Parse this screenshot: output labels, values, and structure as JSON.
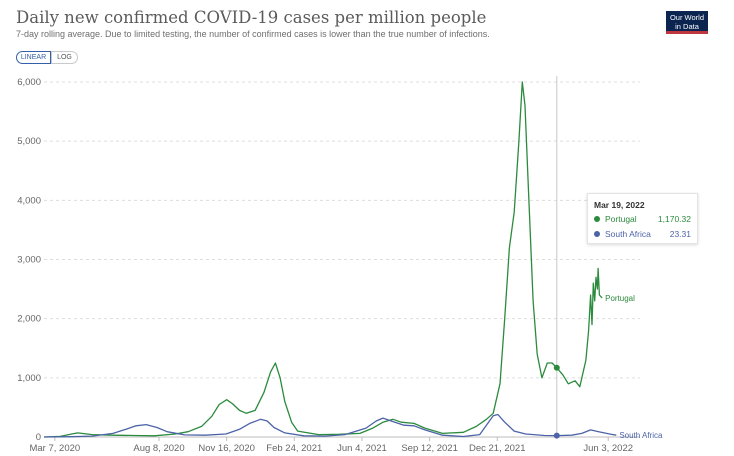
{
  "header": {
    "title": "Daily new confirmed COVID-19 cases per million people",
    "subtitle": "7-day rolling average. Due to limited testing, the number of confirmed cases is lower than the true number of infections.",
    "logo_line1": "Our World",
    "logo_line2": "in Data"
  },
  "controls": {
    "linear_label": "LINEAR",
    "log_label": "LOG",
    "selected": "LINEAR"
  },
  "tooltip": {
    "date": "Mar 19, 2022",
    "rows": [
      {
        "name": "Portugal",
        "value": "1,170.32",
        "color": "#2b8b3d"
      },
      {
        "name": "South Africa",
        "value": "23.31",
        "color": "#4c63a8"
      }
    ]
  },
  "chart_data": {
    "type": "line",
    "title": "Daily new confirmed COVID-19 cases per million people",
    "xlabel": "",
    "ylabel": "",
    "y_ticks": [
      "0",
      "1,000",
      "2,000",
      "3,000",
      "4,000",
      "5,000",
      "6,000"
    ],
    "ylim": [
      0,
      6000
    ],
    "x_ticks": [
      "Mar 7, 2020",
      "Aug 8, 2020",
      "Nov 16, 2020",
      "Feb 24, 2021",
      "Jun 4, 2021",
      "Sep 12, 2021",
      "Dec 21, 2021",
      "Jun 3, 2022"
    ],
    "x_tick_dates": [
      "2020-03-07",
      "2020-08-08",
      "2020-11-16",
      "2021-02-24",
      "2021-06-04",
      "2021-09-12",
      "2021-12-21",
      "2022-06-03"
    ],
    "xlim": [
      "2020-02-20",
      "2022-07-20"
    ],
    "grid": true,
    "highlight_date": "2022-03-19",
    "series": [
      {
        "name": "Portugal",
        "color": "#2b8b3d",
        "points": [
          [
            "2020-02-20",
            0
          ],
          [
            "2020-03-15",
            10
          ],
          [
            "2020-04-01",
            50
          ],
          [
            "2020-04-10",
            70
          ],
          [
            "2020-05-01",
            40
          ],
          [
            "2020-06-01",
            30
          ],
          [
            "2020-07-01",
            25
          ],
          [
            "2020-08-01",
            20
          ],
          [
            "2020-09-01",
            50
          ],
          [
            "2020-09-20",
            90
          ],
          [
            "2020-10-10",
            180
          ],
          [
            "2020-10-25",
            350
          ],
          [
            "2020-11-05",
            550
          ],
          [
            "2020-11-16",
            630
          ],
          [
            "2020-11-25",
            560
          ],
          [
            "2020-12-05",
            450
          ],
          [
            "2020-12-15",
            400
          ],
          [
            "2020-12-28",
            450
          ],
          [
            "2021-01-10",
            750
          ],
          [
            "2021-01-20",
            1100
          ],
          [
            "2021-01-27",
            1250
          ],
          [
            "2021-02-03",
            1000
          ],
          [
            "2021-02-10",
            600
          ],
          [
            "2021-02-20",
            250
          ],
          [
            "2021-03-01",
            100
          ],
          [
            "2021-04-01",
            40
          ],
          [
            "2021-05-01",
            45
          ],
          [
            "2021-06-01",
            60
          ],
          [
            "2021-06-20",
            150
          ],
          [
            "2021-07-05",
            250
          ],
          [
            "2021-07-20",
            300
          ],
          [
            "2021-08-01",
            250
          ],
          [
            "2021-08-20",
            230
          ],
          [
            "2021-09-05",
            150
          ],
          [
            "2021-10-01",
            60
          ],
          [
            "2021-11-01",
            80
          ],
          [
            "2021-11-20",
            180
          ],
          [
            "2021-12-05",
            300
          ],
          [
            "2021-12-15",
            400
          ],
          [
            "2021-12-25",
            900
          ],
          [
            "2022-01-01",
            2000
          ],
          [
            "2022-01-08",
            3200
          ],
          [
            "2022-01-15",
            3800
          ],
          [
            "2022-01-22",
            5000
          ],
          [
            "2022-01-27",
            6000
          ],
          [
            "2022-01-31",
            5600
          ],
          [
            "2022-02-05",
            4200
          ],
          [
            "2022-02-12",
            2300
          ],
          [
            "2022-02-18",
            1400
          ],
          [
            "2022-02-25",
            1000
          ],
          [
            "2022-03-05",
            1250
          ],
          [
            "2022-03-12",
            1250
          ],
          [
            "2022-03-19",
            1170
          ],
          [
            "2022-03-28",
            1050
          ],
          [
            "2022-04-05",
            900
          ],
          [
            "2022-04-15",
            950
          ],
          [
            "2022-04-22",
            850
          ],
          [
            "2022-05-01",
            1300
          ],
          [
            "2022-05-05",
            1800
          ],
          [
            "2022-05-08",
            2400
          ],
          [
            "2022-05-10",
            1900
          ],
          [
            "2022-05-12",
            2600
          ],
          [
            "2022-05-14",
            2300
          ],
          [
            "2022-05-16",
            2700
          ],
          [
            "2022-05-18",
            2500
          ],
          [
            "2022-05-19",
            2850
          ],
          [
            "2022-05-21",
            2400
          ],
          [
            "2022-05-25",
            2350
          ]
        ]
      },
      {
        "name": "South Africa",
        "color": "#4c63a8",
        "points": [
          [
            "2020-02-20",
            0
          ],
          [
            "2020-04-01",
            5
          ],
          [
            "2020-05-01",
            15
          ],
          [
            "2020-06-01",
            60
          ],
          [
            "2020-06-20",
            130
          ],
          [
            "2020-07-05",
            190
          ],
          [
            "2020-07-20",
            210
          ],
          [
            "2020-08-05",
            160
          ],
          [
            "2020-08-20",
            90
          ],
          [
            "2020-09-15",
            35
          ],
          [
            "2020-10-15",
            30
          ],
          [
            "2020-11-15",
            50
          ],
          [
            "2020-12-05",
            130
          ],
          [
            "2020-12-20",
            230
          ],
          [
            "2021-01-05",
            300
          ],
          [
            "2021-01-15",
            270
          ],
          [
            "2021-01-25",
            160
          ],
          [
            "2021-02-10",
            70
          ],
          [
            "2021-03-10",
            20
          ],
          [
            "2021-04-10",
            15
          ],
          [
            "2021-05-10",
            40
          ],
          [
            "2021-06-10",
            150
          ],
          [
            "2021-06-25",
            270
          ],
          [
            "2021-07-05",
            320
          ],
          [
            "2021-07-20",
            260
          ],
          [
            "2021-08-05",
            200
          ],
          [
            "2021-08-20",
            190
          ],
          [
            "2021-09-05",
            120
          ],
          [
            "2021-10-01",
            30
          ],
          [
            "2021-11-01",
            8
          ],
          [
            "2021-11-25",
            40
          ],
          [
            "2021-12-05",
            200
          ],
          [
            "2021-12-15",
            360
          ],
          [
            "2021-12-22",
            380
          ],
          [
            "2022-01-01",
            250
          ],
          [
            "2022-01-15",
            100
          ],
          [
            "2022-02-01",
            50
          ],
          [
            "2022-03-01",
            25
          ],
          [
            "2022-03-19",
            23
          ],
          [
            "2022-04-10",
            30
          ],
          [
            "2022-04-25",
            60
          ],
          [
            "2022-05-08",
            120
          ],
          [
            "2022-05-20",
            90
          ],
          [
            "2022-06-05",
            50
          ],
          [
            "2022-06-15",
            30
          ]
        ]
      }
    ],
    "end_labels": [
      "Portugal",
      "South Africa"
    ]
  }
}
